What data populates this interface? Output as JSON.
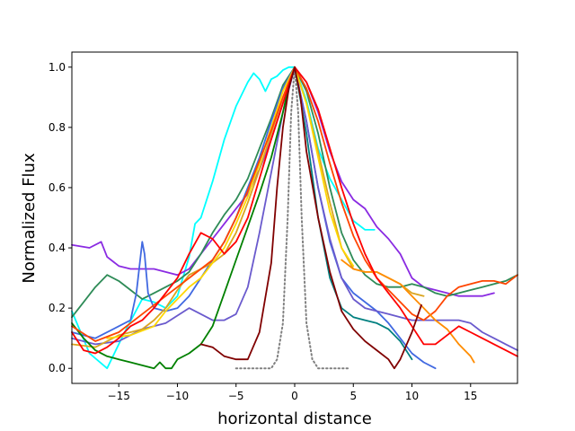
{
  "chart_data": {
    "type": "line",
    "title": "",
    "xlabel": "horizontal distance",
    "ylabel": "Normalized Flux",
    "xlim": [
      -19,
      19
    ],
    "ylim": [
      -0.05,
      1.05
    ],
    "x_ticks": [
      -15,
      -10,
      -5,
      0,
      5,
      10,
      15
    ],
    "x_tick_labels": [
      "−15",
      "−10",
      "−5",
      "0",
      "5",
      "10",
      "15"
    ],
    "y_ticks": [
      0.0,
      0.2,
      0.4,
      0.6,
      0.8,
      1.0
    ],
    "y_tick_labels": [
      "0.0",
      "0.2",
      "0.4",
      "0.6",
      "0.8",
      "1.0"
    ],
    "grid": false,
    "legend": "none",
    "series": [
      {
        "color": "#808080",
        "style": "dotted",
        "x": [
          -5,
          -2,
          -1.5,
          -1,
          -0.6,
          -0.3,
          0,
          0.3,
          0.6,
          1,
          1.5,
          2,
          4.7
        ],
        "y": [
          0.0,
          0.0,
          0.03,
          0.15,
          0.5,
          0.85,
          1.0,
          0.85,
          0.5,
          0.15,
          0.03,
          0.0,
          0.0
        ]
      },
      {
        "color": "#00ffff",
        "x": [
          -19,
          -17.5,
          -16,
          -14.5,
          -13,
          -12,
          -11,
          -10,
          -9,
          -8.5,
          -8,
          -7,
          -6,
          -5,
          -4,
          -3.5,
          -3,
          -2.5,
          -2,
          -1.5,
          -1,
          -0.5,
          0,
          1,
          2,
          3,
          4,
          5,
          6,
          6.8
        ],
        "y": [
          0.19,
          0.05,
          0.0,
          0.12,
          0.23,
          0.22,
          0.2,
          0.24,
          0.37,
          0.48,
          0.5,
          0.62,
          0.76,
          0.87,
          0.95,
          0.98,
          0.96,
          0.92,
          0.96,
          0.97,
          0.99,
          1.0,
          1.0,
          0.89,
          0.73,
          0.63,
          0.56,
          0.49,
          0.46,
          0.46
        ]
      },
      {
        "color": "#8a2be2",
        "x": [
          -19,
          -17.5,
          -16.5,
          -16,
          -15,
          -14,
          -13,
          -12,
          -11,
          -10,
          -9,
          -8,
          -7,
          -6,
          -5,
          -4,
          -3,
          -2,
          -1,
          0,
          1,
          2,
          3,
          4,
          5,
          6,
          7,
          8,
          9,
          10,
          11,
          12,
          13,
          14,
          15,
          16,
          17
        ],
        "y": [
          0.41,
          0.4,
          0.42,
          0.37,
          0.34,
          0.33,
          0.33,
          0.33,
          0.32,
          0.31,
          0.33,
          0.38,
          0.43,
          0.48,
          0.53,
          0.58,
          0.66,
          0.76,
          0.88,
          1.0,
          0.95,
          0.85,
          0.72,
          0.62,
          0.56,
          0.53,
          0.47,
          0.43,
          0.38,
          0.3,
          0.27,
          0.26,
          0.25,
          0.24,
          0.24,
          0.24,
          0.25
        ]
      },
      {
        "color": "#2e8b57",
        "x": [
          -19,
          -18,
          -17,
          -16,
          -15,
          -14,
          -13,
          -12,
          -11,
          -10,
          -9,
          -8,
          -7,
          -6,
          -5,
          -4,
          -3,
          -2,
          -1,
          0,
          1,
          2,
          3,
          4,
          5,
          6,
          7,
          8,
          9,
          10,
          11,
          12,
          13,
          14,
          15,
          16,
          17,
          18,
          19
        ],
        "y": [
          0.17,
          0.22,
          0.27,
          0.31,
          0.29,
          0.26,
          0.23,
          0.25,
          0.27,
          0.29,
          0.32,
          0.38,
          0.45,
          0.51,
          0.56,
          0.63,
          0.73,
          0.83,
          0.94,
          1.0,
          0.92,
          0.78,
          0.6,
          0.45,
          0.36,
          0.31,
          0.28,
          0.27,
          0.27,
          0.28,
          0.27,
          0.25,
          0.24,
          0.25,
          0.26,
          0.27,
          0.28,
          0.29,
          0.31
        ]
      },
      {
        "color": "#4169e1",
        "x": [
          -19,
          -17,
          -15,
          -14,
          -13.5,
          -13,
          -12.8,
          -12.5,
          -12,
          -11,
          -10,
          -9,
          -8,
          -7,
          -6,
          -5,
          -4,
          -3,
          -2,
          -1,
          0,
          1,
          2,
          3,
          4,
          5,
          6,
          7,
          8,
          9,
          10,
          11,
          12
        ],
        "y": [
          0.12,
          0.1,
          0.14,
          0.16,
          0.25,
          0.42,
          0.38,
          0.25,
          0.2,
          0.19,
          0.2,
          0.24,
          0.3,
          0.36,
          0.42,
          0.5,
          0.6,
          0.7,
          0.82,
          0.93,
          1.0,
          0.82,
          0.6,
          0.42,
          0.3,
          0.25,
          0.22,
          0.19,
          0.15,
          0.1,
          0.05,
          0.02,
          0.0
        ]
      },
      {
        "color": "#6a5acd",
        "x": [
          -19,
          -17,
          -15,
          -13,
          -11,
          -9,
          -8,
          -7,
          -6,
          -5,
          -4,
          -3,
          -2,
          -1,
          0,
          1,
          2,
          3,
          4,
          5,
          6,
          7,
          8,
          9,
          10,
          11,
          12,
          13,
          14,
          15,
          16,
          17,
          18,
          19
        ],
        "y": [
          0.1,
          0.08,
          0.09,
          0.13,
          0.15,
          0.2,
          0.18,
          0.16,
          0.16,
          0.18,
          0.27,
          0.45,
          0.65,
          0.85,
          1.0,
          0.82,
          0.6,
          0.43,
          0.3,
          0.23,
          0.2,
          0.19,
          0.18,
          0.17,
          0.16,
          0.16,
          0.16,
          0.16,
          0.16,
          0.15,
          0.12,
          0.1,
          0.08,
          0.06
        ]
      },
      {
        "color": "#daa520",
        "x": [
          -19,
          -17,
          -16,
          -15,
          -14,
          -13,
          -12,
          -11,
          -10,
          -9,
          -8,
          -7,
          -6,
          -5,
          -4,
          -3,
          -2,
          -1,
          0,
          1,
          2,
          3,
          4,
          5,
          6,
          7,
          8,
          9,
          10,
          11
        ],
        "y": [
          0.08,
          0.07,
          0.09,
          0.11,
          0.12,
          0.13,
          0.16,
          0.2,
          0.26,
          0.31,
          0.33,
          0.35,
          0.38,
          0.45,
          0.55,
          0.66,
          0.78,
          0.9,
          1.0,
          0.88,
          0.72,
          0.55,
          0.4,
          0.33,
          0.32,
          0.32,
          0.3,
          0.28,
          0.25,
          0.24
        ]
      },
      {
        "color": "#ffd700",
        "x": [
          -16,
          -14,
          -12,
          -11,
          -10,
          -9,
          -8,
          -7,
          -6,
          -5,
          -4,
          -3,
          -2,
          -1,
          0,
          1,
          2,
          3,
          4,
          5
        ],
        "y": [
          0.1,
          0.11,
          0.14,
          0.19,
          0.23,
          0.27,
          0.3,
          0.35,
          0.4,
          0.48,
          0.57,
          0.68,
          0.8,
          0.92,
          1.0,
          0.88,
          0.7,
          0.52,
          0.4,
          0.34
        ]
      },
      {
        "color": "#008000",
        "x": [
          -19,
          -18,
          -17,
          -16,
          -15,
          -14,
          -13,
          -12,
          -11.5,
          -11,
          -10.5,
          -10,
          -9,
          -8,
          -7,
          -6,
          -5,
          -4,
          -3,
          -2,
          -1,
          -0.5,
          0
        ],
        "y": [
          0.15,
          0.1,
          0.06,
          0.04,
          0.03,
          0.02,
          0.01,
          0.0,
          0.02,
          0.0,
          0.0,
          0.03,
          0.05,
          0.08,
          0.14,
          0.25,
          0.36,
          0.47,
          0.58,
          0.7,
          0.85,
          0.94,
          1.0
        ]
      },
      {
        "color": "#008080",
        "x": [
          0,
          1,
          2,
          3,
          4,
          5,
          6,
          7,
          8,
          9,
          10
        ],
        "y": [
          1.0,
          0.78,
          0.5,
          0.3,
          0.2,
          0.17,
          0.16,
          0.15,
          0.13,
          0.09,
          0.03
        ]
      },
      {
        "color": "#ff4500",
        "x": [
          -19,
          -17,
          -15,
          -13,
          -11,
          -9,
          -7,
          -6,
          -5,
          -4,
          -3,
          -2,
          -1,
          0,
          1,
          2,
          3,
          4,
          5,
          6,
          7,
          8,
          9,
          10,
          11,
          12,
          13,
          14,
          15,
          16,
          17,
          18,
          19
        ],
        "y": [
          0.14,
          0.09,
          0.12,
          0.18,
          0.24,
          0.3,
          0.36,
          0.42,
          0.5,
          0.59,
          0.69,
          0.79,
          0.9,
          1.0,
          0.93,
          0.82,
          0.68,
          0.55,
          0.44,
          0.36,
          0.3,
          0.26,
          0.22,
          0.18,
          0.16,
          0.19,
          0.24,
          0.27,
          0.28,
          0.29,
          0.29,
          0.28,
          0.31
        ]
      },
      {
        "color": "#ff8c00",
        "x": [
          4,
          5,
          6,
          7,
          8,
          9,
          10,
          11,
          12,
          13,
          14,
          15,
          15.3
        ],
        "y": [
          0.36,
          0.33,
          0.32,
          0.32,
          0.3,
          0.28,
          0.24,
          0.2,
          0.16,
          0.13,
          0.08,
          0.04,
          0.02
        ]
      },
      {
        "color": "#ff0000",
        "x": [
          -19,
          -18,
          -17,
          -16,
          -15,
          -14,
          -13,
          -12,
          -11,
          -10,
          -9,
          -8,
          -7,
          -6,
          -5,
          -4,
          -3,
          -2,
          -1,
          0,
          1,
          2,
          3,
          4,
          5,
          6,
          7,
          8,
          9,
          10,
          11,
          12,
          13,
          14,
          15,
          16,
          17,
          18,
          19
        ],
        "y": [
          0.12,
          0.06,
          0.05,
          0.07,
          0.1,
          0.14,
          0.16,
          0.2,
          0.25,
          0.3,
          0.38,
          0.45,
          0.43,
          0.38,
          0.42,
          0.5,
          0.63,
          0.76,
          0.88,
          1.0,
          0.95,
          0.86,
          0.73,
          0.6,
          0.48,
          0.38,
          0.3,
          0.25,
          0.2,
          0.14,
          0.08,
          0.08,
          0.11,
          0.14,
          0.12,
          0.1,
          0.08,
          0.06,
          0.04
        ]
      },
      {
        "color": "#800000",
        "x": [
          -8,
          -7,
          -6,
          -5,
          -4,
          -3,
          -2,
          -1.5,
          -1,
          -0.5,
          0,
          0.5,
          1,
          2,
          3,
          4,
          5,
          6,
          7,
          8,
          8.5,
          9,
          10,
          10.8
        ],
        "y": [
          0.08,
          0.07,
          0.04,
          0.03,
          0.03,
          0.12,
          0.35,
          0.6,
          0.8,
          0.93,
          1.0,
          0.9,
          0.72,
          0.5,
          0.32,
          0.19,
          0.13,
          0.09,
          0.06,
          0.03,
          0.0,
          0.03,
          0.12,
          0.21
        ]
      }
    ]
  }
}
